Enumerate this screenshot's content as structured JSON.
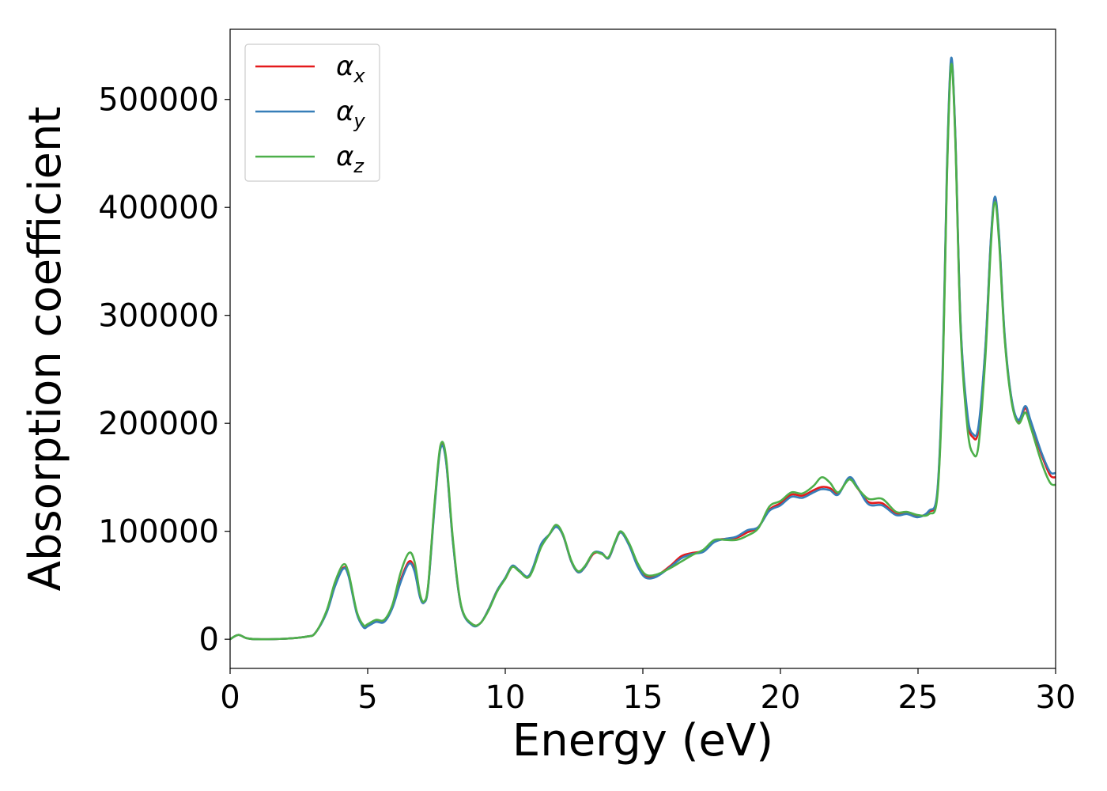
{
  "chart_data": {
    "type": "line",
    "title": "",
    "xlabel": "Energy (eV)",
    "ylabel": "Absorption coefficient",
    "xlim": [
      0,
      30
    ],
    "ylim": [
      -27000,
      565000
    ],
    "xticks": [
      0,
      5,
      10,
      15,
      20,
      25,
      30
    ],
    "yticks": [
      0,
      100000,
      200000,
      300000,
      400000,
      500000
    ],
    "xtick_labels": [
      "0",
      "5",
      "10",
      "15",
      "20",
      "25",
      "30"
    ],
    "ytick_labels": [
      "0",
      "100000",
      "200000",
      "300000",
      "400000",
      "500000"
    ],
    "grid": false,
    "legend_position": "top-left",
    "series": [
      {
        "name": "α",
        "subscript": "x",
        "color": "#e41a1c",
        "points": [
          [
            0,
            0
          ],
          [
            0.3,
            4000
          ],
          [
            0.6,
            1000
          ],
          [
            1.0,
            0
          ],
          [
            2.0,
            500
          ],
          [
            2.8,
            2500
          ],
          [
            3.1,
            6000
          ],
          [
            3.5,
            25000
          ],
          [
            3.8,
            50000
          ],
          [
            4.1,
            66000
          ],
          [
            4.3,
            60000
          ],
          [
            4.6,
            25000
          ],
          [
            4.85,
            12000
          ],
          [
            5.0,
            13000
          ],
          [
            5.3,
            17000
          ],
          [
            5.6,
            17000
          ],
          [
            5.9,
            30000
          ],
          [
            6.2,
            55000
          ],
          [
            6.5,
            72000
          ],
          [
            6.7,
            65000
          ],
          [
            6.9,
            40000
          ],
          [
            7.05,
            34000
          ],
          [
            7.2,
            50000
          ],
          [
            7.45,
            130000
          ],
          [
            7.65,
            178000
          ],
          [
            7.85,
            165000
          ],
          [
            8.1,
            90000
          ],
          [
            8.4,
            30000
          ],
          [
            8.8,
            14000
          ],
          [
            9.1,
            15000
          ],
          [
            9.4,
            28000
          ],
          [
            9.7,
            45000
          ],
          [
            10.0,
            56000
          ],
          [
            10.25,
            67000
          ],
          [
            10.5,
            64000
          ],
          [
            10.8,
            57000
          ],
          [
            11.0,
            65000
          ],
          [
            11.3,
            87000
          ],
          [
            11.6,
            97000
          ],
          [
            11.85,
            105000
          ],
          [
            12.1,
            96000
          ],
          [
            12.4,
            72000
          ],
          [
            12.65,
            62000
          ],
          [
            12.9,
            67000
          ],
          [
            13.2,
            79000
          ],
          [
            13.5,
            80000
          ],
          [
            13.75,
            75000
          ],
          [
            14.0,
            90000
          ],
          [
            14.2,
            99000
          ],
          [
            14.5,
            88000
          ],
          [
            14.8,
            70000
          ],
          [
            15.1,
            59000
          ],
          [
            15.5,
            59000
          ],
          [
            16.0,
            68000
          ],
          [
            16.4,
            77000
          ],
          [
            16.8,
            80000
          ],
          [
            17.2,
            82000
          ],
          [
            17.6,
            91000
          ],
          [
            18.0,
            93000
          ],
          [
            18.4,
            94000
          ],
          [
            18.8,
            99000
          ],
          [
            19.2,
            104000
          ],
          [
            19.6,
            120000
          ],
          [
            20.0,
            126000
          ],
          [
            20.4,
            134000
          ],
          [
            20.8,
            133000
          ],
          [
            21.2,
            138000
          ],
          [
            21.5,
            141000
          ],
          [
            21.8,
            140000
          ],
          [
            22.1,
            135000
          ],
          [
            22.5,
            149000
          ],
          [
            22.8,
            140000
          ],
          [
            23.2,
            127000
          ],
          [
            23.7,
            126000
          ],
          [
            24.2,
            116000
          ],
          [
            24.6,
            117000
          ],
          [
            25.0,
            114000
          ],
          [
            25.4,
            118000
          ],
          [
            25.7,
            135000
          ],
          [
            25.9,
            250000
          ],
          [
            26.05,
            430000
          ],
          [
            26.2,
            535000
          ],
          [
            26.35,
            470000
          ],
          [
            26.55,
            290000
          ],
          [
            26.8,
            205000
          ],
          [
            27.0,
            187000
          ],
          [
            27.2,
            195000
          ],
          [
            27.45,
            270000
          ],
          [
            27.65,
            370000
          ],
          [
            27.8,
            408000
          ],
          [
            27.95,
            370000
          ],
          [
            28.15,
            280000
          ],
          [
            28.4,
            222000
          ],
          [
            28.65,
            202000
          ],
          [
            28.9,
            214000
          ],
          [
            29.1,
            200000
          ],
          [
            29.5,
            170000
          ],
          [
            29.8,
            152000
          ],
          [
            30.0,
            150000
          ]
        ]
      },
      {
        "name": "α",
        "subscript": "y",
        "color": "#377eb8",
        "points": [
          [
            0,
            0
          ],
          [
            0.3,
            4000
          ],
          [
            0.6,
            1000
          ],
          [
            1.0,
            0
          ],
          [
            2.0,
            500
          ],
          [
            2.8,
            2500
          ],
          [
            3.1,
            6000
          ],
          [
            3.5,
            24000
          ],
          [
            3.8,
            48000
          ],
          [
            4.1,
            65000
          ],
          [
            4.3,
            59000
          ],
          [
            4.6,
            24000
          ],
          [
            4.85,
            11000
          ],
          [
            5.0,
            12000
          ],
          [
            5.3,
            16000
          ],
          [
            5.6,
            16000
          ],
          [
            5.9,
            29000
          ],
          [
            6.2,
            53000
          ],
          [
            6.5,
            70000
          ],
          [
            6.7,
            63000
          ],
          [
            6.9,
            39000
          ],
          [
            7.05,
            34000
          ],
          [
            7.2,
            49000
          ],
          [
            7.45,
            128000
          ],
          [
            7.65,
            177000
          ],
          [
            7.85,
            164000
          ],
          [
            8.1,
            89000
          ],
          [
            8.4,
            30000
          ],
          [
            8.8,
            13000
          ],
          [
            9.1,
            15000
          ],
          [
            9.4,
            28000
          ],
          [
            9.7,
            45000
          ],
          [
            10.0,
            57000
          ],
          [
            10.25,
            68000
          ],
          [
            10.5,
            64000
          ],
          [
            10.8,
            58000
          ],
          [
            11.0,
            66000
          ],
          [
            11.3,
            88000
          ],
          [
            11.6,
            97000
          ],
          [
            11.85,
            104000
          ],
          [
            12.1,
            96000
          ],
          [
            12.4,
            72000
          ],
          [
            12.65,
            62000
          ],
          [
            12.9,
            67000
          ],
          [
            13.2,
            80000
          ],
          [
            13.5,
            80000
          ],
          [
            13.75,
            75000
          ],
          [
            14.0,
            90000
          ],
          [
            14.2,
            99000
          ],
          [
            14.5,
            87000
          ],
          [
            14.8,
            68000
          ],
          [
            15.1,
            57000
          ],
          [
            15.5,
            58000
          ],
          [
            16.0,
            67000
          ],
          [
            16.4,
            75000
          ],
          [
            16.8,
            79000
          ],
          [
            17.2,
            81000
          ],
          [
            17.6,
            90000
          ],
          [
            18.0,
            93000
          ],
          [
            18.4,
            95000
          ],
          [
            18.8,
            101000
          ],
          [
            19.2,
            104000
          ],
          [
            19.6,
            119000
          ],
          [
            20.0,
            124000
          ],
          [
            20.4,
            132000
          ],
          [
            20.8,
            131000
          ],
          [
            21.2,
            136000
          ],
          [
            21.5,
            139000
          ],
          [
            21.8,
            138000
          ],
          [
            22.1,
            134000
          ],
          [
            22.5,
            150000
          ],
          [
            22.8,
            141000
          ],
          [
            23.2,
            125000
          ],
          [
            23.7,
            124000
          ],
          [
            24.2,
            115000
          ],
          [
            24.6,
            116000
          ],
          [
            25.0,
            113000
          ],
          [
            25.4,
            119000
          ],
          [
            25.7,
            137000
          ],
          [
            25.9,
            255000
          ],
          [
            26.05,
            435000
          ],
          [
            26.2,
            538000
          ],
          [
            26.35,
            472000
          ],
          [
            26.55,
            292000
          ],
          [
            26.8,
            208000
          ],
          [
            27.0,
            190000
          ],
          [
            27.2,
            198000
          ],
          [
            27.45,
            272000
          ],
          [
            27.65,
            372000
          ],
          [
            27.8,
            410000
          ],
          [
            27.95,
            372000
          ],
          [
            28.15,
            282000
          ],
          [
            28.4,
            223000
          ],
          [
            28.65,
            203000
          ],
          [
            28.9,
            216000
          ],
          [
            29.1,
            202000
          ],
          [
            29.5,
            172000
          ],
          [
            29.8,
            155000
          ],
          [
            30.0,
            154000
          ]
        ]
      },
      {
        "name": "α",
        "subscript": "z",
        "color": "#4daf4a",
        "points": [
          [
            0,
            0
          ],
          [
            0.3,
            4000
          ],
          [
            0.6,
            1000
          ],
          [
            1.0,
            0
          ],
          [
            2.0,
            500
          ],
          [
            2.8,
            2500
          ],
          [
            3.1,
            6000
          ],
          [
            3.5,
            26000
          ],
          [
            3.8,
            52000
          ],
          [
            4.1,
            69000
          ],
          [
            4.3,
            62000
          ],
          [
            4.6,
            26000
          ],
          [
            4.85,
            13000
          ],
          [
            5.0,
            14000
          ],
          [
            5.3,
            18000
          ],
          [
            5.6,
            18000
          ],
          [
            5.9,
            32000
          ],
          [
            6.2,
            62000
          ],
          [
            6.5,
            80000
          ],
          [
            6.7,
            72000
          ],
          [
            6.9,
            42000
          ],
          [
            7.05,
            35000
          ],
          [
            7.2,
            51000
          ],
          [
            7.45,
            132000
          ],
          [
            7.65,
            180000
          ],
          [
            7.85,
            168000
          ],
          [
            8.1,
            92000
          ],
          [
            8.4,
            31000
          ],
          [
            8.8,
            14000
          ],
          [
            9.1,
            15000
          ],
          [
            9.4,
            27000
          ],
          [
            9.7,
            44000
          ],
          [
            10.0,
            56000
          ],
          [
            10.25,
            67000
          ],
          [
            10.5,
            63000
          ],
          [
            10.8,
            57000
          ],
          [
            11.0,
            64000
          ],
          [
            11.3,
            85000
          ],
          [
            11.6,
            97000
          ],
          [
            11.85,
            106000
          ],
          [
            12.1,
            97000
          ],
          [
            12.4,
            73000
          ],
          [
            12.65,
            63000
          ],
          [
            12.9,
            68000
          ],
          [
            13.2,
            80000
          ],
          [
            13.5,
            79000
          ],
          [
            13.75,
            76000
          ],
          [
            14.0,
            91000
          ],
          [
            14.2,
            100000
          ],
          [
            14.5,
            89000
          ],
          [
            14.8,
            71000
          ],
          [
            15.1,
            60000
          ],
          [
            15.5,
            60000
          ],
          [
            16.0,
            66000
          ],
          [
            16.4,
            72000
          ],
          [
            16.8,
            78000
          ],
          [
            17.2,
            83000
          ],
          [
            17.6,
            92000
          ],
          [
            18.0,
            92000
          ],
          [
            18.4,
            92000
          ],
          [
            18.8,
            96000
          ],
          [
            19.2,
            103000
          ],
          [
            19.6,
            123000
          ],
          [
            20.0,
            128000
          ],
          [
            20.4,
            136000
          ],
          [
            20.8,
            135000
          ],
          [
            21.2,
            142000
          ],
          [
            21.5,
            150000
          ],
          [
            21.8,
            145000
          ],
          [
            22.1,
            136000
          ],
          [
            22.5,
            148000
          ],
          [
            22.8,
            140000
          ],
          [
            23.2,
            130000
          ],
          [
            23.7,
            130000
          ],
          [
            24.2,
            118000
          ],
          [
            24.6,
            118000
          ],
          [
            25.0,
            115000
          ],
          [
            25.4,
            116000
          ],
          [
            25.7,
            132000
          ],
          [
            25.9,
            245000
          ],
          [
            26.05,
            425000
          ],
          [
            26.2,
            532000
          ],
          [
            26.35,
            466000
          ],
          [
            26.55,
            285000
          ],
          [
            26.8,
            195000
          ],
          [
            27.0,
            172000
          ],
          [
            27.2,
            180000
          ],
          [
            27.45,
            262000
          ],
          [
            27.65,
            365000
          ],
          [
            27.8,
            405000
          ],
          [
            27.95,
            366000
          ],
          [
            28.15,
            278000
          ],
          [
            28.4,
            220000
          ],
          [
            28.65,
            200000
          ],
          [
            28.9,
            210000
          ],
          [
            29.1,
            196000
          ],
          [
            29.5,
            163000
          ],
          [
            29.8,
            145000
          ],
          [
            30.0,
            143000
          ]
        ]
      }
    ]
  }
}
